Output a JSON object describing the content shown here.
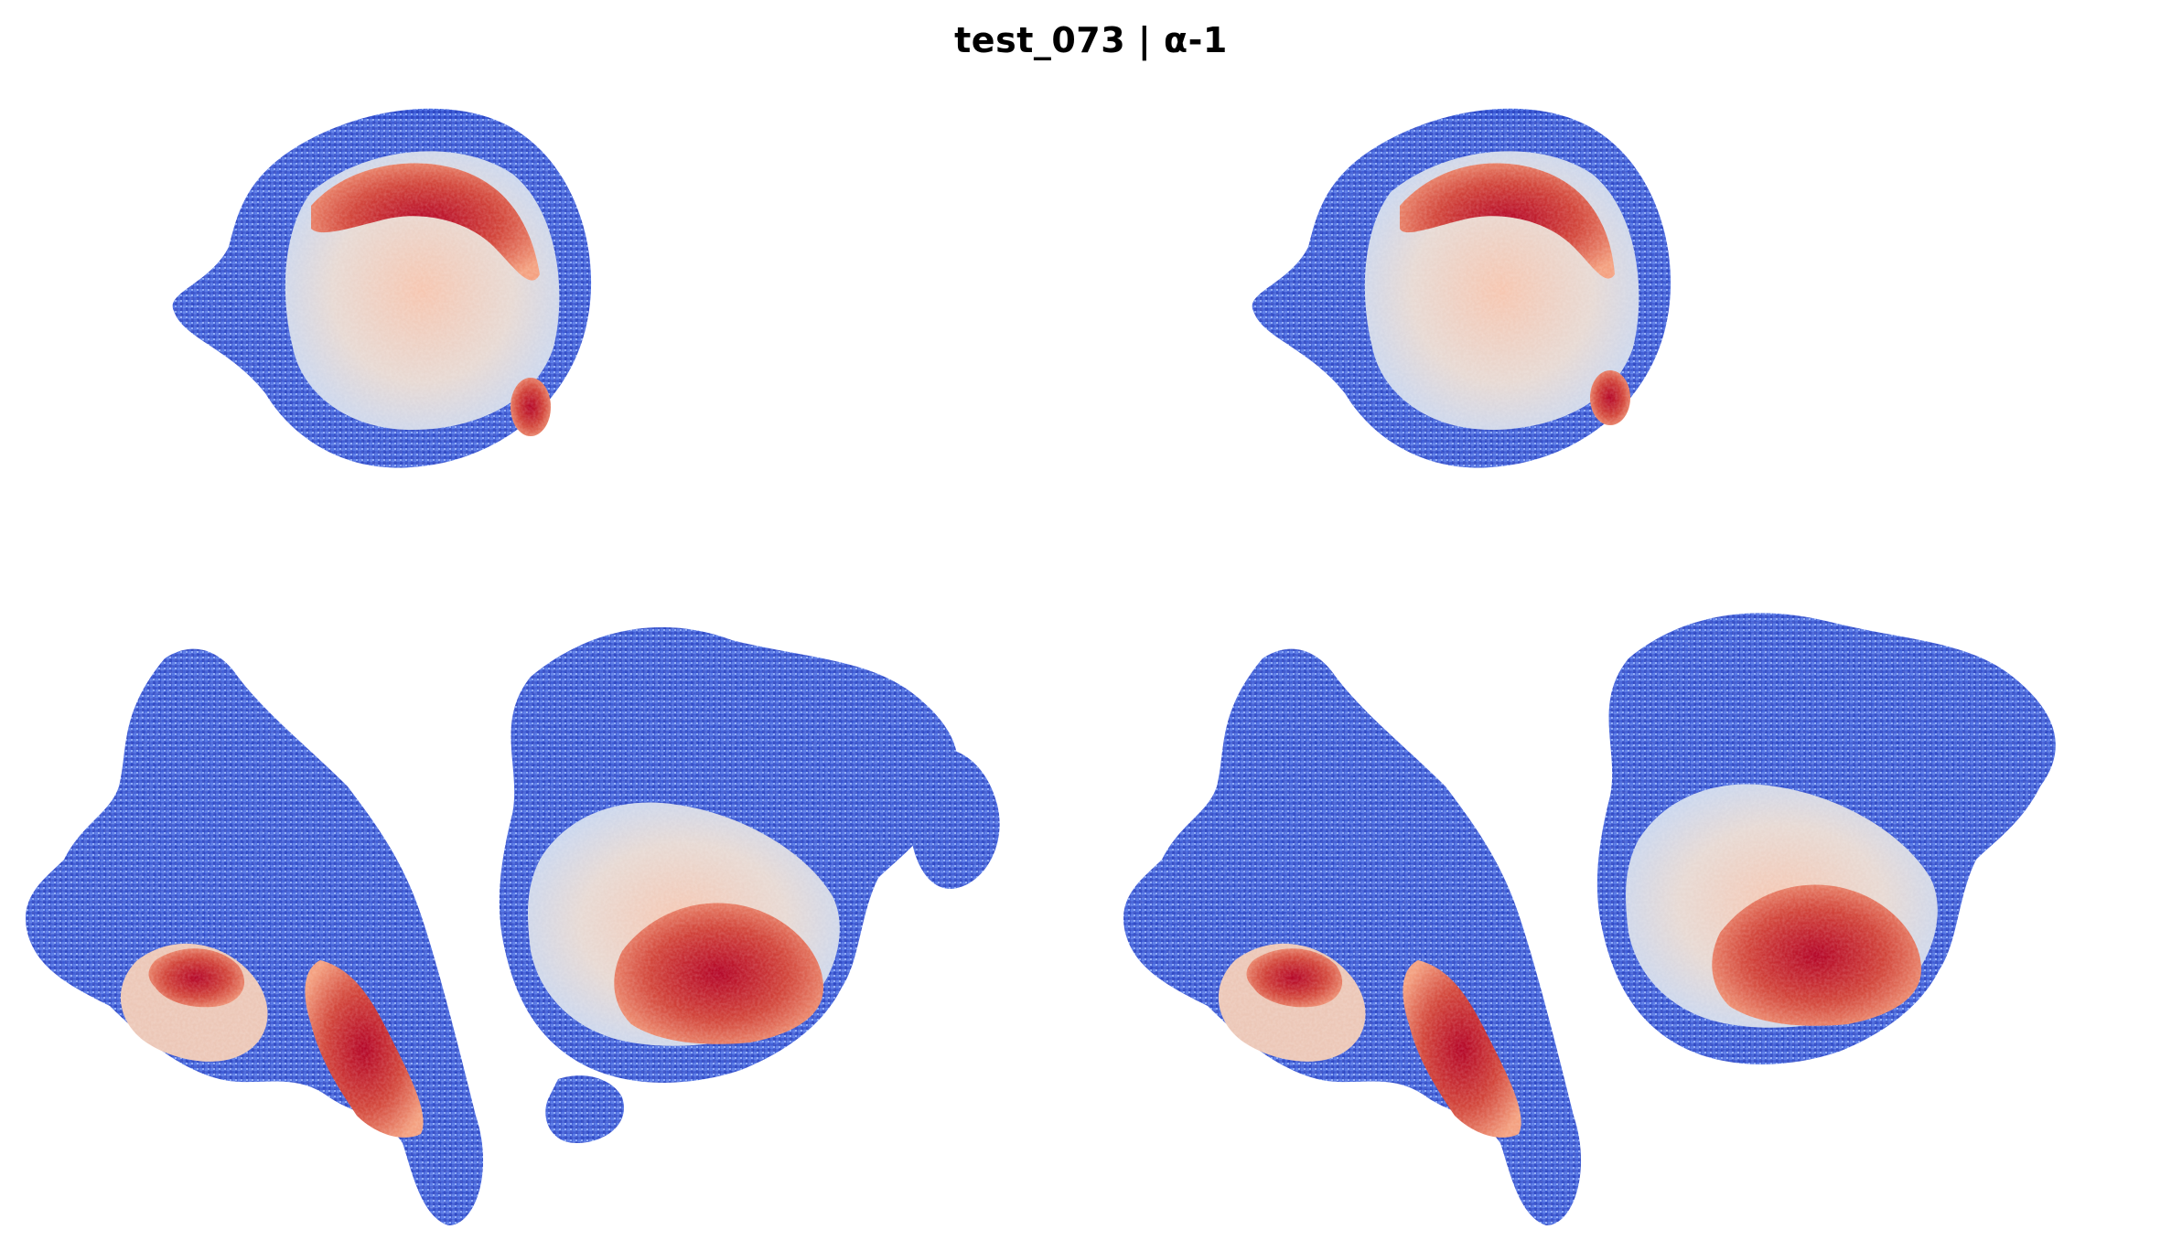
{
  "figure": {
    "title": "test_073 | α-1"
  },
  "colormap": {
    "name": "coolwarm",
    "low": "#3b4cc0",
    "mid_low": "#8db0fe",
    "mid": "#dddddd",
    "mid_high": "#f4987a",
    "high": "#b40426"
  },
  "panels": [
    {
      "name": "left-panel",
      "axes": "off"
    },
    {
      "name": "right-panel",
      "axes": "off"
    }
  ]
}
